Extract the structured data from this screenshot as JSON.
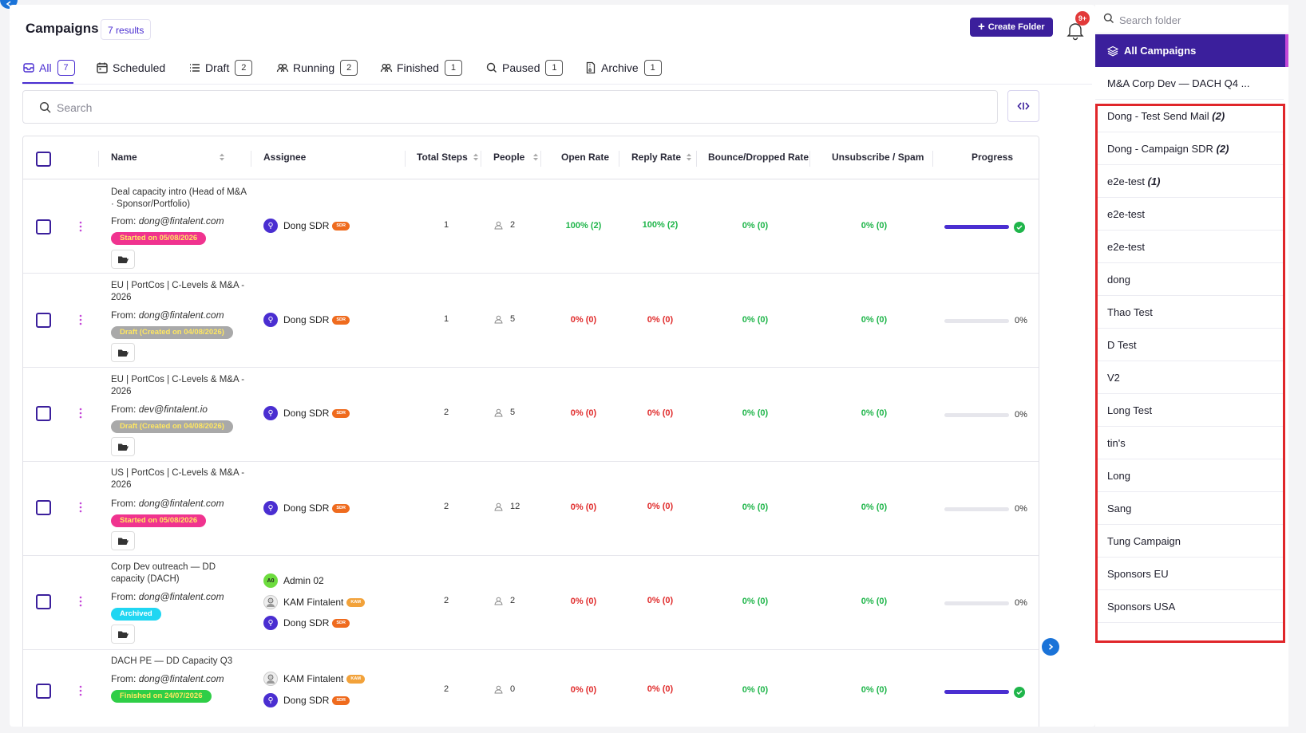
{
  "header": {
    "title": "Campaigns",
    "results": "7 results",
    "create_folder": "Create Folder",
    "notifications": "9+"
  },
  "tabs": [
    {
      "label": "All",
      "count": "7"
    },
    {
      "label": "Scheduled",
      "count": ""
    },
    {
      "label": "Draft",
      "count": "2"
    },
    {
      "label": "Running",
      "count": "2"
    },
    {
      "label": "Finished",
      "count": "1"
    },
    {
      "label": "Paused",
      "count": "1"
    },
    {
      "label": "Archive",
      "count": "1"
    }
  ],
  "search": {
    "placeholder": "Search"
  },
  "columns": [
    "Name",
    "Assignee",
    "Total Steps",
    "People",
    "Open Rate",
    "Reply Rate",
    "Bounce/Dropped Rate",
    "Unsubscribe / Spam",
    "Progress"
  ],
  "rows": [
    {
      "name": "Deal capacity intro (Head of M&A · Sponsor/Portfolio)",
      "from_label": "From:",
      "from": "dong@fintalent.com",
      "status": "Started on 05/08/2026",
      "assignees": [
        {
          "name": "Dong SDR",
          "role": "SDR",
          "initials": ""
        }
      ],
      "steps": "1",
      "people": "2",
      "open": "100% (2)",
      "reply": "100% (2)",
      "bounce": "0% (0)",
      "unsub": "0% (0)",
      "progress": 100,
      "progress_label": ""
    },
    {
      "name": "EU | PortCos | C-Levels & M&A - 2026",
      "from_label": "From:",
      "from": "dong@fintalent.com",
      "status": "Draft (Created on 04/08/2026)",
      "assignees": [
        {
          "name": "Dong SDR",
          "role": "SDR",
          "initials": ""
        }
      ],
      "steps": "1",
      "people": "5",
      "open": "0% (0)",
      "reply": "0% (0)",
      "bounce": "0% (0)",
      "unsub": "0% (0)",
      "progress": 0,
      "progress_label": "0%"
    },
    {
      "name": "EU | PortCos | C-Levels & M&A - 2026",
      "from_label": "From:",
      "from": "dev@fintalent.io",
      "status": "Draft (Created on 04/08/2026)",
      "assignees": [
        {
          "name": "Dong SDR",
          "role": "SDR",
          "initials": ""
        }
      ],
      "steps": "2",
      "people": "5",
      "open": "0% (0)",
      "reply": "0% (0)",
      "bounce": "0% (0)",
      "unsub": "0% (0)",
      "progress": 0,
      "progress_label": "0%"
    },
    {
      "name": "US | PortCos | C-Levels & M&A - 2026",
      "from_label": "From:",
      "from": "dong@fintalent.com",
      "status": "Started on 05/08/2026",
      "assignees": [
        {
          "name": "Dong SDR",
          "role": "SDR",
          "initials": ""
        }
      ],
      "steps": "2",
      "people": "12",
      "open": "0% (0)",
      "reply": "0% (0)",
      "bounce": "0% (0)",
      "unsub": "0% (0)",
      "progress": 0,
      "progress_label": "0%"
    },
    {
      "name": "Corp Dev outreach — DD capacity (DACH)",
      "from_label": "From:",
      "from": "dong@fintalent.com",
      "status": "Archived",
      "assignees": [
        {
          "name": "Admin 02",
          "role": "",
          "initials": "A0"
        },
        {
          "name": "KAM Fintalent",
          "role": "KAM",
          "initials": ""
        },
        {
          "name": "Dong SDR",
          "role": "SDR",
          "initials": ""
        }
      ],
      "steps": "2",
      "people": "2",
      "open": "0% (0)",
      "reply": "0% (0)",
      "bounce": "0% (0)",
      "unsub": "0% (0)",
      "progress": 0,
      "progress_label": "0%"
    },
    {
      "name": "DACH PE — DD Capacity Q3",
      "from_label": "From:",
      "from": "dong@fintalent.com",
      "status": "Finished on 24/07/2026",
      "assignees": [
        {
          "name": "KAM Fintalent",
          "role": "KAM",
          "initials": ""
        },
        {
          "name": "Dong SDR",
          "role": "SDR",
          "initials": ""
        }
      ],
      "steps": "2",
      "people": "0",
      "open": "0% (0)",
      "reply": "0% (0)",
      "bounce": "0% (0)",
      "unsub": "0% (0)",
      "progress": 100,
      "progress_label": ""
    }
  ],
  "sidebar": {
    "search_placeholder": "Search folder",
    "all_campaigns": "All Campaigns",
    "folders": [
      {
        "name": "M&A Corp Dev — DACH Q4 ...",
        "count": ""
      },
      {
        "name": "Dong - Test Send Mail",
        "count": "(2)"
      },
      {
        "name": "Dong - Campaign SDR",
        "count": "(2)"
      },
      {
        "name": "e2e-test",
        "count": "(1)"
      },
      {
        "name": "e2e-test",
        "count": ""
      },
      {
        "name": "e2e-test",
        "count": ""
      },
      {
        "name": "dong",
        "count": ""
      },
      {
        "name": "Thao Test",
        "count": ""
      },
      {
        "name": "D Test",
        "count": ""
      },
      {
        "name": "V2",
        "count": ""
      },
      {
        "name": "Long Test",
        "count": ""
      },
      {
        "name": "tin's",
        "count": ""
      },
      {
        "name": "Long",
        "count": ""
      },
      {
        "name": "Sang",
        "count": ""
      },
      {
        "name": "Tung Campaign",
        "count": ""
      },
      {
        "name": "Sponsors EU",
        "count": ""
      },
      {
        "name": "Sponsors USA",
        "count": ""
      }
    ]
  },
  "colors": {
    "accent": "#3b1f9c",
    "green": "#1fb54a",
    "red": "#e02b2b",
    "highlight": "#e0262a"
  }
}
